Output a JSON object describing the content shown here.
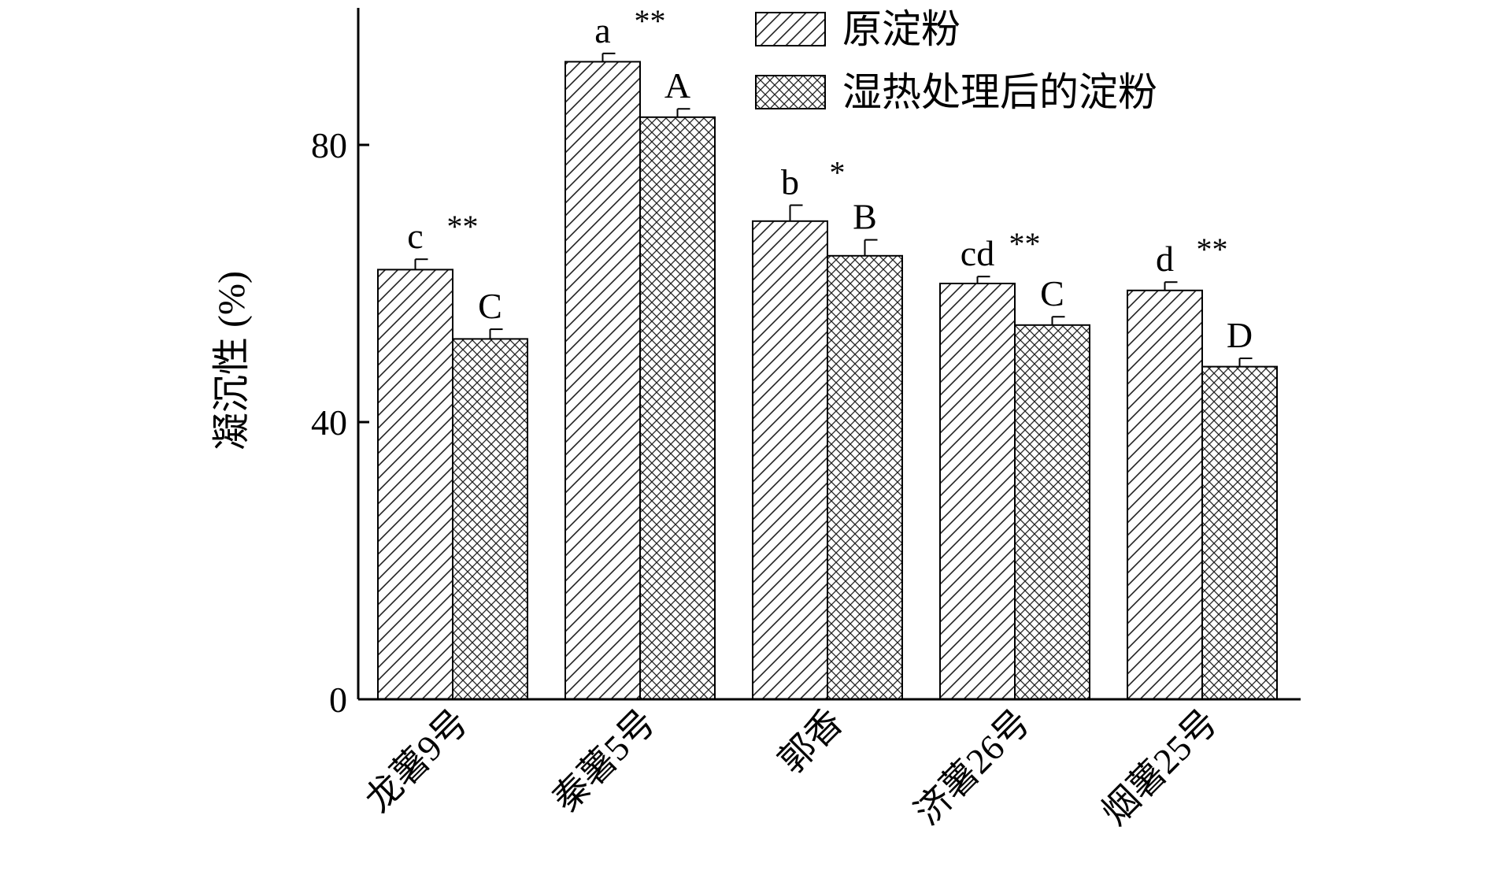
{
  "chart_data": {
    "type": "bar",
    "title": "",
    "xlabel": "",
    "ylabel": "凝沉性 (%)",
    "ylim": [
      0,
      100
    ],
    "yticks": [
      0,
      40,
      80
    ],
    "grid": false,
    "legend_position": "top-right",
    "categories": [
      "龙薯9号",
      "秦薯5号",
      "郭香",
      "济薯26号",
      "烟薯25号"
    ],
    "series": [
      {
        "name": "原淀粉",
        "pattern": "diagonal-hatch",
        "values": [
          62,
          92,
          69,
          60,
          59
        ],
        "errors": [
          1.5,
          1.2,
          2.3,
          1.0,
          1.2
        ],
        "labels": [
          "c",
          "a",
          "b",
          "cd",
          "d"
        ],
        "significance": [
          "**",
          "**",
          "*",
          "**",
          "**"
        ]
      },
      {
        "name": "湿热处理后的淀粉",
        "pattern": "cross-hatch",
        "values": [
          52,
          84,
          64,
          54,
          48
        ],
        "errors": [
          1.4,
          1.2,
          2.3,
          1.2,
          1.2
        ],
        "labels": [
          "C",
          "A",
          "B",
          "C",
          "D"
        ]
      }
    ]
  }
}
